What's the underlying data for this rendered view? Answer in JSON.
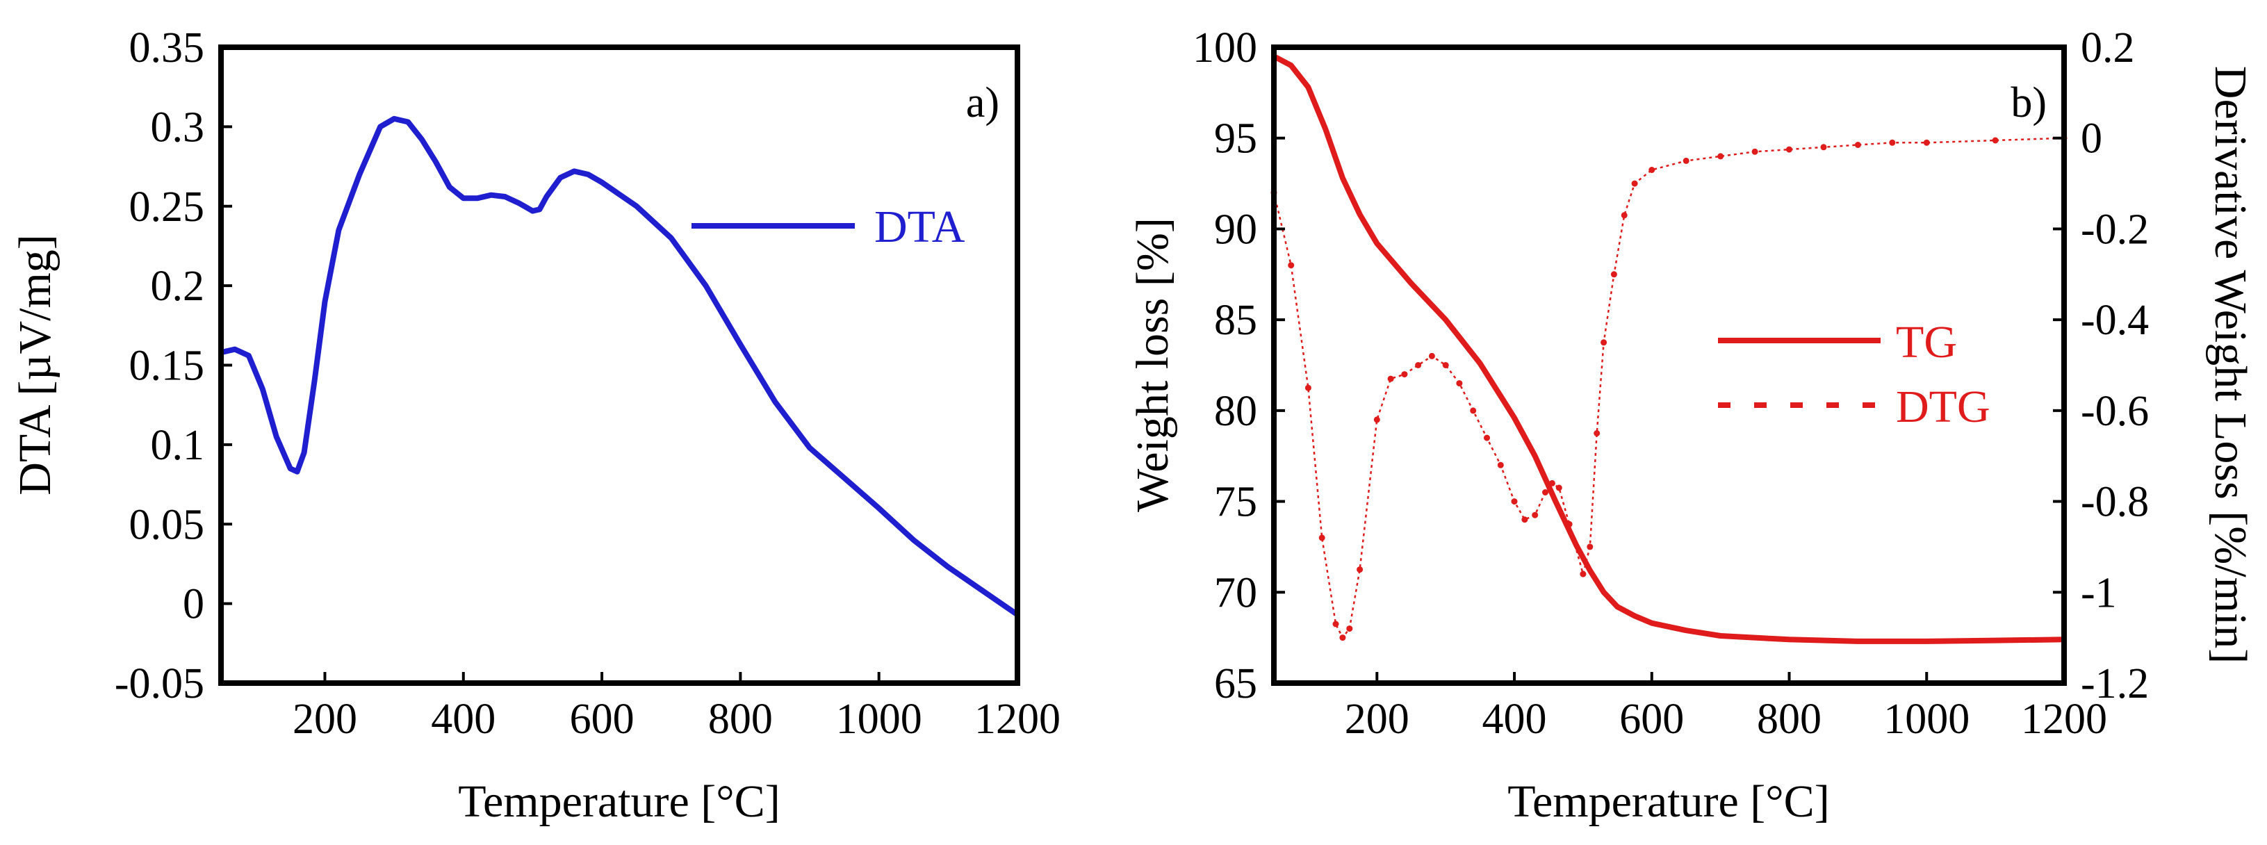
{
  "colors": {
    "dta": "#1f1fd0",
    "tg": "#e01b1b",
    "dtg": "#e01b1b",
    "axis": "#000000"
  },
  "chart_data": [
    {
      "type": "line",
      "panel_label": "a)",
      "xlabel": "Temperature [°C]",
      "ylabel": "DTA [µV/mg]",
      "xlim": [
        50,
        1200
      ],
      "ylim": [
        -0.05,
        0.35
      ],
      "x_ticks": [
        200,
        400,
        600,
        800,
        1000,
        1200
      ],
      "x_tick_labels": [
        "200",
        "400",
        "600",
        "800",
        "1000",
        "1200"
      ],
      "y_ticks": [
        -0.05,
        0,
        0.05,
        0.1,
        0.15,
        0.2,
        0.25,
        0.3,
        0.35
      ],
      "y_tick_labels": [
        "-0.05",
        "0",
        "0.05",
        "0.1",
        "0.15",
        "0.2",
        "0.25",
        "0.3",
        "0.35"
      ],
      "legend": {
        "position": "right",
        "entries": [
          {
            "name": "DTA",
            "style": "solid"
          }
        ]
      },
      "series": [
        {
          "name": "DTA",
          "x": [
            50,
            70,
            90,
            110,
            130,
            150,
            160,
            170,
            185,
            200,
            220,
            250,
            280,
            300,
            320,
            340,
            360,
            380,
            400,
            420,
            440,
            460,
            480,
            500,
            510,
            520,
            540,
            560,
            580,
            600,
            650,
            700,
            750,
            800,
            850,
            900,
            950,
            1000,
            1050,
            1100,
            1150,
            1200
          ],
          "y": [
            0.158,
            0.16,
            0.156,
            0.135,
            0.105,
            0.085,
            0.083,
            0.095,
            0.14,
            0.19,
            0.235,
            0.27,
            0.3,
            0.305,
            0.303,
            0.292,
            0.278,
            0.262,
            0.255,
            0.255,
            0.257,
            0.256,
            0.252,
            0.247,
            0.248,
            0.256,
            0.268,
            0.272,
            0.27,
            0.265,
            0.25,
            0.23,
            0.2,
            0.163,
            0.127,
            0.098,
            0.079,
            0.06,
            0.04,
            0.023,
            0.008,
            -0.007
          ]
        }
      ]
    },
    {
      "type": "line",
      "panel_label": "b)",
      "xlabel": "Temperature [°C]",
      "ylabel": "Weight loss [%]",
      "y2label": "Derivative Weight Loss [%/min]",
      "xlim": [
        50,
        1200
      ],
      "ylim": [
        65,
        100
      ],
      "y2lim": [
        -1.2,
        0.2
      ],
      "x_ticks": [
        200,
        400,
        600,
        800,
        1000,
        1200
      ],
      "x_tick_labels": [
        "200",
        "400",
        "600",
        "800",
        "1000",
        "1200"
      ],
      "y_ticks": [
        65,
        70,
        75,
        80,
        85,
        90,
        95,
        100
      ],
      "y_tick_labels": [
        "65",
        "70",
        "75",
        "80",
        "85",
        "90",
        "95",
        "100"
      ],
      "y2_ticks": [
        -1.2,
        -1,
        -0.8,
        -0.6,
        -0.4,
        -0.2,
        0,
        0.2
      ],
      "y2_tick_labels": [
        "-1.2",
        "-1",
        "-0.8",
        "-0.6",
        "-0.4",
        "-0.2",
        "0",
        "0.2"
      ],
      "legend": {
        "position": "right",
        "entries": [
          {
            "name": "TG",
            "style": "solid"
          },
          {
            "name": "DTG",
            "style": "dashed"
          }
        ]
      },
      "series": [
        {
          "name": "TG",
          "axis": "left",
          "x": [
            50,
            75,
            100,
            125,
            150,
            175,
            200,
            250,
            300,
            350,
            400,
            430,
            460,
            490,
            510,
            530,
            550,
            575,
            600,
            650,
            700,
            800,
            900,
            1000,
            1100,
            1200
          ],
          "y": [
            99.5,
            99.0,
            97.8,
            95.5,
            92.8,
            90.8,
            89.2,
            87.0,
            85.0,
            82.6,
            79.6,
            77.5,
            75.0,
            72.6,
            71.2,
            70.0,
            69.2,
            68.7,
            68.3,
            67.9,
            67.6,
            67.4,
            67.3,
            67.3,
            67.35,
            67.4
          ]
        },
        {
          "name": "DTG",
          "axis": "right",
          "x": [
            50,
            75,
            100,
            120,
            140,
            150,
            160,
            175,
            200,
            220,
            240,
            260,
            280,
            300,
            320,
            340,
            360,
            380,
            400,
            415,
            430,
            445,
            455,
            465,
            480,
            500,
            510,
            520,
            530,
            545,
            560,
            575,
            600,
            650,
            700,
            750,
            800,
            850,
            900,
            950,
            1000,
            1100,
            1200
          ],
          "y": [
            -0.12,
            -0.28,
            -0.55,
            -0.88,
            -1.07,
            -1.1,
            -1.08,
            -0.95,
            -0.62,
            -0.53,
            -0.52,
            -0.5,
            -0.48,
            -0.5,
            -0.54,
            -0.6,
            -0.66,
            -0.72,
            -0.8,
            -0.84,
            -0.83,
            -0.78,
            -0.76,
            -0.77,
            -0.85,
            -0.96,
            -0.9,
            -0.65,
            -0.45,
            -0.3,
            -0.17,
            -0.1,
            -0.07,
            -0.05,
            -0.04,
            -0.03,
            -0.025,
            -0.02,
            -0.015,
            -0.01,
            -0.01,
            -0.005,
            0.0
          ]
        }
      ]
    }
  ]
}
